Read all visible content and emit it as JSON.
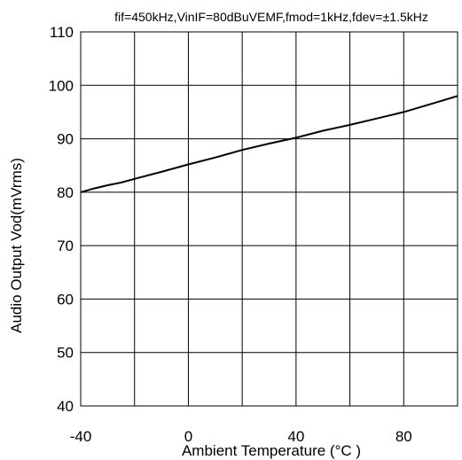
{
  "chart_data": {
    "type": "line",
    "title": "fif=450kHz,VinIF=80dBuVEMF,fmod=1kHz,fdev=±1.5kHz",
    "xlabel": "Ambient Temperature (°C )",
    "ylabel": "Audio Output Vod(mVrms)",
    "xlim": [
      -40,
      100
    ],
    "ylim": [
      40,
      110
    ],
    "x_ticks": [
      -40,
      0,
      40,
      80
    ],
    "x_grid": [
      -40,
      -20,
      0,
      20,
      40,
      60,
      80,
      100
    ],
    "y_ticks": [
      40,
      50,
      60,
      70,
      80,
      90,
      100,
      110
    ],
    "grid": true,
    "legend": "none",
    "colors": {
      "line": "#000000",
      "grid": "#000000",
      "background": "#ffffff"
    },
    "series": [
      {
        "x": [
          -40,
          -35,
          -30,
          -25,
          -20,
          -10,
          0,
          10,
          20,
          30,
          40,
          50,
          60,
          70,
          80,
          90,
          100
        ],
        "y": [
          80.0,
          80.7,
          81.3,
          81.8,
          82.5,
          83.8,
          85.2,
          86.5,
          87.9,
          89.1,
          90.2,
          91.5,
          92.6,
          93.8,
          95.0,
          96.5,
          98.0
        ]
      }
    ]
  }
}
